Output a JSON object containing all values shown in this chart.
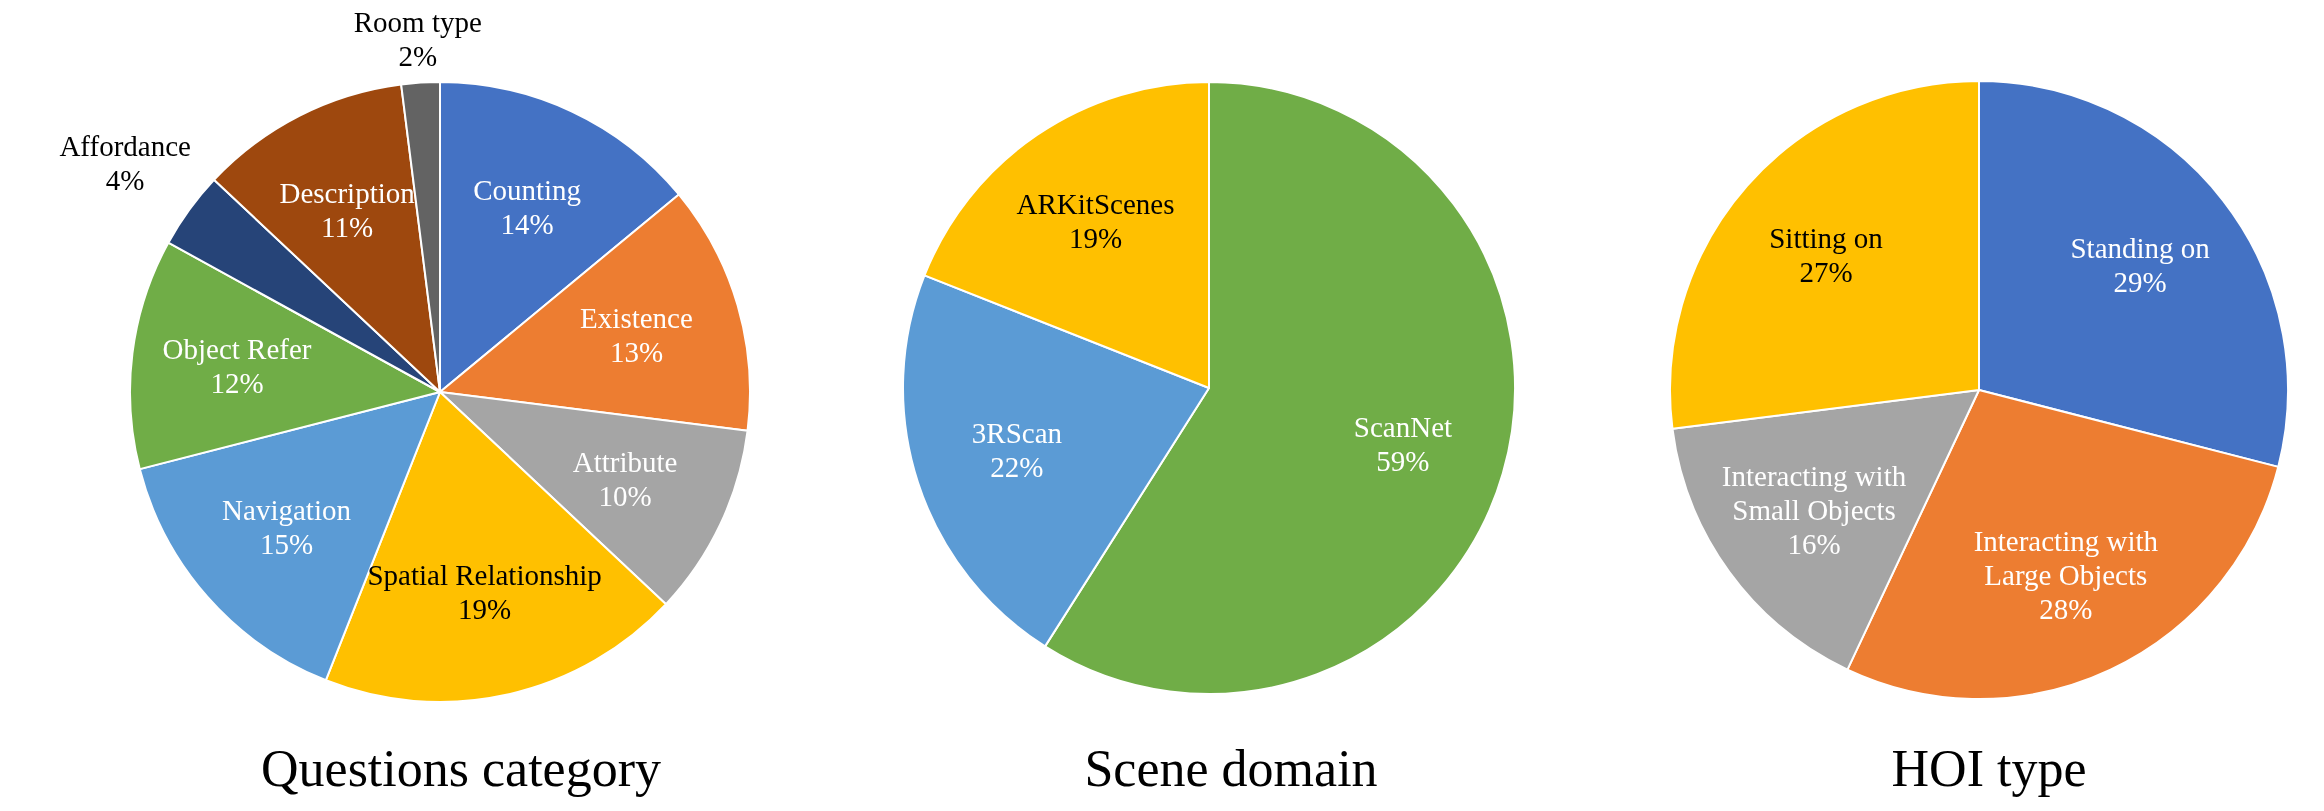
{
  "chart_data": [
    {
      "type": "pie",
      "title": "Questions category",
      "categories": [
        "Counting",
        "Existence",
        "Attribute",
        "Spatial Relationship",
        "Navigation",
        "Object Refer",
        "Affordance",
        "Description",
        "Room type"
      ],
      "values": [
        14,
        13,
        10,
        19,
        15,
        12,
        4,
        11,
        2
      ],
      "value_labels": [
        "14%",
        "13%",
        "10%",
        "19%",
        "15%",
        "12%",
        "4%",
        "11%",
        "2%"
      ],
      "colors": [
        "#4472c4",
        "#ed7d31",
        "#a5a5a5",
        "#ffc000",
        "#5b9bd5",
        "#70ad47",
        "#264478",
        "#9e480e",
        "#636363"
      ]
    },
    {
      "type": "pie",
      "title": "Scene domain",
      "categories": [
        "ScanNet",
        "3RScan",
        "ARKitScenes"
      ],
      "values": [
        59,
        22,
        19
      ],
      "value_labels": [
        "59%",
        "22%",
        "19%"
      ],
      "colors": [
        "#70ad47",
        "#5b9bd5",
        "#ffc000"
      ]
    },
    {
      "type": "pie",
      "title": "HOI type",
      "categories": [
        "Standing on",
        "Interacting with Large Objects",
        "Interacting with Small Objects",
        "Sitting on"
      ],
      "values": [
        29,
        28,
        16,
        27
      ],
      "value_labels": [
        "29%",
        "28%",
        "16%",
        "27%"
      ],
      "colors": [
        "#4472c4",
        "#ed7d31",
        "#a5a5a5",
        "#ffc000"
      ]
    }
  ]
}
